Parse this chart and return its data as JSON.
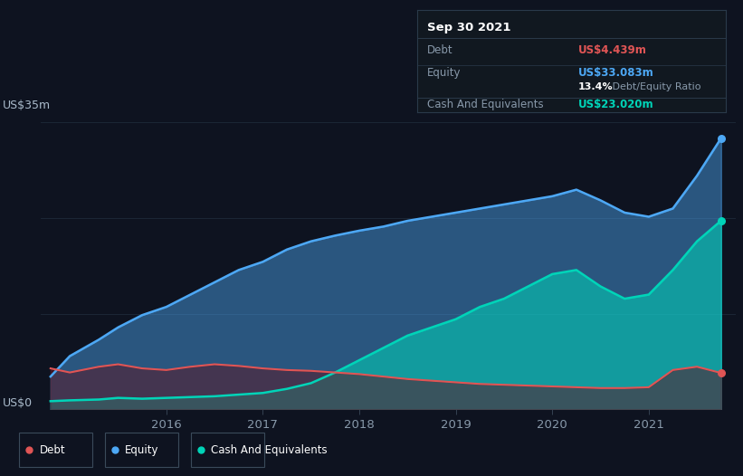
{
  "background_color": "#0e1320",
  "plot_bg_color": "#0e1320",
  "title_box": {
    "date": "Sep 30 2021",
    "debt_label": "Debt",
    "debt_value": "US$4.439m",
    "equity_label": "Equity",
    "equity_value": "US$33.083m",
    "ratio_bold": "13.4%",
    "ratio_normal": " Debt/Equity Ratio",
    "cash_label": "Cash And Equivalents",
    "cash_value": "US$23.020m"
  },
  "ylabel_top": "US$35m",
  "ylabel_bottom": "US$0",
  "x_ticks": [
    "2016",
    "2017",
    "2018",
    "2019",
    "2020",
    "2021"
  ],
  "x_tick_positions": [
    2016,
    2017,
    2018,
    2019,
    2020,
    2021
  ],
  "debt_color": "#e05555",
  "equity_color": "#4da8f5",
  "cash_color": "#00d4b8",
  "grid_color": "#1e2a3a",
  "debt_fill_color": "#5a1a2a",
  "debt_data": {
    "x": [
      2014.8,
      2015.0,
      2015.3,
      2015.5,
      2015.75,
      2016.0,
      2016.25,
      2016.5,
      2016.75,
      2017.0,
      2017.25,
      2017.5,
      2017.75,
      2018.0,
      2018.25,
      2018.5,
      2018.75,
      2019.0,
      2019.25,
      2019.5,
      2019.75,
      2020.0,
      2020.25,
      2020.5,
      2020.75,
      2021.0,
      2021.25,
      2021.5,
      2021.75
    ],
    "y": [
      5.0,
      4.5,
      5.2,
      5.5,
      5.0,
      4.8,
      5.2,
      5.5,
      5.3,
      5.0,
      4.8,
      4.7,
      4.5,
      4.3,
      4.0,
      3.7,
      3.5,
      3.3,
      3.1,
      3.0,
      2.9,
      2.8,
      2.7,
      2.6,
      2.6,
      2.7,
      4.8,
      5.2,
      4.439
    ]
  },
  "equity_data": {
    "x": [
      2014.8,
      2015.0,
      2015.3,
      2015.5,
      2015.75,
      2016.0,
      2016.25,
      2016.5,
      2016.75,
      2017.0,
      2017.25,
      2017.5,
      2017.75,
      2018.0,
      2018.25,
      2018.5,
      2018.75,
      2019.0,
      2019.25,
      2019.5,
      2019.75,
      2020.0,
      2020.25,
      2020.5,
      2020.75,
      2021.0,
      2021.25,
      2021.5,
      2021.75
    ],
    "y": [
      4.0,
      6.5,
      8.5,
      10.0,
      11.5,
      12.5,
      14.0,
      15.5,
      17.0,
      18.0,
      19.5,
      20.5,
      21.2,
      21.8,
      22.3,
      23.0,
      23.5,
      24.0,
      24.5,
      25.0,
      25.5,
      26.0,
      26.8,
      25.5,
      24.0,
      23.5,
      24.5,
      28.5,
      33.083
    ]
  },
  "cash_data": {
    "x": [
      2014.8,
      2015.0,
      2015.3,
      2015.5,
      2015.75,
      2016.0,
      2016.25,
      2016.5,
      2016.75,
      2017.0,
      2017.25,
      2017.5,
      2017.75,
      2018.0,
      2018.25,
      2018.5,
      2018.75,
      2019.0,
      2019.25,
      2019.5,
      2019.75,
      2020.0,
      2020.25,
      2020.5,
      2020.75,
      2021.0,
      2021.25,
      2021.5,
      2021.75
    ],
    "y": [
      1.0,
      1.1,
      1.2,
      1.4,
      1.3,
      1.4,
      1.5,
      1.6,
      1.8,
      2.0,
      2.5,
      3.2,
      4.5,
      6.0,
      7.5,
      9.0,
      10.0,
      11.0,
      12.5,
      13.5,
      15.0,
      16.5,
      17.0,
      15.0,
      13.5,
      14.0,
      17.0,
      20.5,
      23.02
    ]
  },
  "ylim": [
    0,
    36
  ],
  "xlim": [
    2014.7,
    2021.9
  ]
}
